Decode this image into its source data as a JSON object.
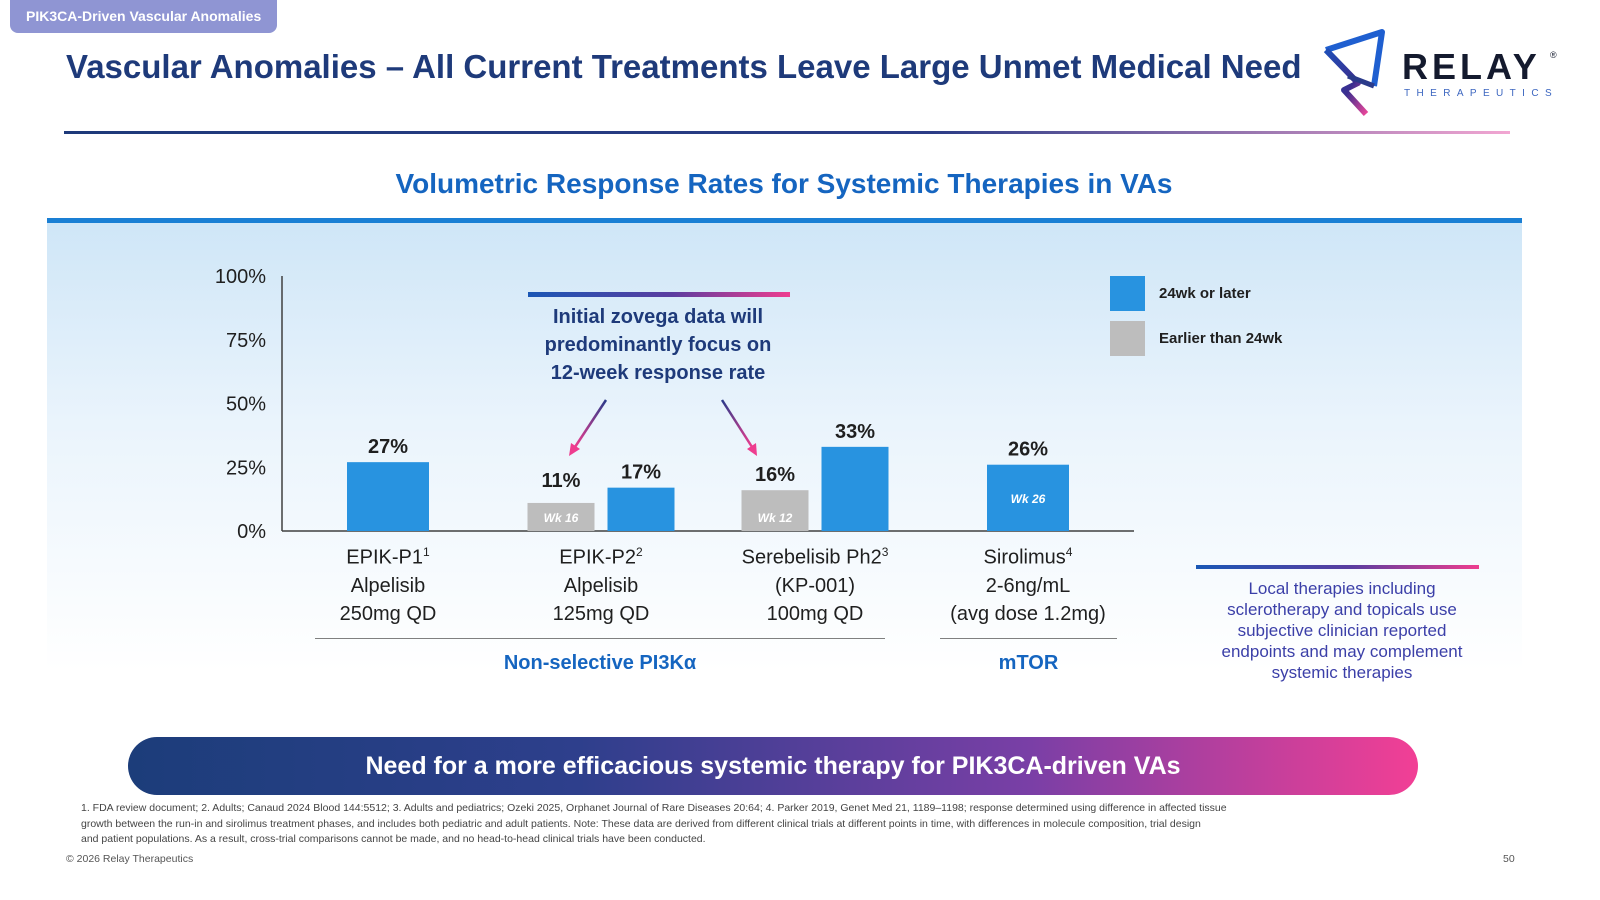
{
  "section_tag": "PIK3CA-Driven Vascular Anomalies",
  "title": "Vascular Anomalies – All Current Treatments Leave Large Unmet Medical Need",
  "logo": {
    "word": "RELAY",
    "reg": "®",
    "sub": "THERAPEUTICS"
  },
  "colors": {
    "primary_blue": "#2893e0",
    "gray": "#bdbdbd",
    "navy": "#1e3a7a",
    "accent_pink": "#ee3d8f"
  },
  "chart_data": {
    "type": "bar",
    "title": "Volumetric Response Rates for Systemic Therapies in VAs",
    "ylim": [
      0,
      100
    ],
    "yticks": [
      "0%",
      "25%",
      "50%",
      "75%",
      "100%"
    ],
    "categories": [
      {
        "lines": [
          "EPIK-P1",
          "Alpelisib",
          "250mg QD"
        ],
        "sup": "1"
      },
      {
        "lines": [
          "EPIK-P2",
          "Alpelisib",
          "125mg QD"
        ],
        "sup": "2"
      },
      {
        "lines": [
          "Serebelisib Ph2",
          "(KP-001)",
          "100mg QD"
        ],
        "sup": "3"
      },
      {
        "lines": [
          "Sirolimus",
          "2-6ng/mL",
          "(avg dose 1.2mg)"
        ],
        "sup": "4"
      }
    ],
    "bars": [
      {
        "category": 0,
        "series": "24wk or later",
        "value": 27,
        "label": "27%"
      },
      {
        "category": 1,
        "series": "Earlier than 24wk",
        "value": 11,
        "label": "11%",
        "inner": "Wk 16"
      },
      {
        "category": 1,
        "series": "24wk or later",
        "value": 17,
        "label": "17%"
      },
      {
        "category": 2,
        "series": "Earlier than 24wk",
        "value": 16,
        "label": "16%",
        "inner": "Wk 12"
      },
      {
        "category": 2,
        "series": "24wk or later",
        "value": 33,
        "label": "33%"
      },
      {
        "category": 3,
        "series": "24wk or later",
        "value": 26,
        "label": "26%",
        "inner": "Wk 26"
      }
    ],
    "legend": [
      {
        "label": "24wk or later",
        "color": "#2893e0"
      },
      {
        "label": "Earlier than 24wk",
        "color": "#bdbdbd"
      }
    ],
    "groups": [
      {
        "label": "Non-selective PI3Kα",
        "categories": [
          0,
          1,
          2
        ]
      },
      {
        "label": "mTOR",
        "categories": [
          3
        ]
      }
    ],
    "legend_position": "top-right",
    "callout": {
      "lines": [
        "Initial zovega data will",
        "predominantly focus on",
        "12-week response rate"
      ],
      "points_to": [
        "Wk 16",
        "Wk 12"
      ]
    }
  },
  "local_note": {
    "lines": [
      "Local therapies including",
      "sclerotherapy and topicals use",
      "subjective clinician reported",
      "endpoints and may complement",
      "systemic therapies"
    ]
  },
  "banner": "Need for a more efficacious systemic therapy for PIK3CA-driven VAs",
  "footnotes": [
    "1. FDA review document;  2. Adults; Canaud 2024 Blood 144:5512;  3. Adults and pediatrics; Ozeki 2025, Orphanet Journal of Rare Diseases 20:64;  4. Parker 2019, Genet Med 21, 1189–1198; response determined using difference in affected tissue",
    "growth between the run-in and sirolimus treatment phases, and includes both pediatric and adult patients. Note: These data are derived from different clinical trials at different points in time, with differences in molecule composition, trial design",
    "and patient populations. As a result, cross-trial comparisons cannot be made, and no head-to-head clinical trials have been conducted."
  ],
  "copyright": "© 2026 Relay Therapeutics",
  "page_number": "50"
}
